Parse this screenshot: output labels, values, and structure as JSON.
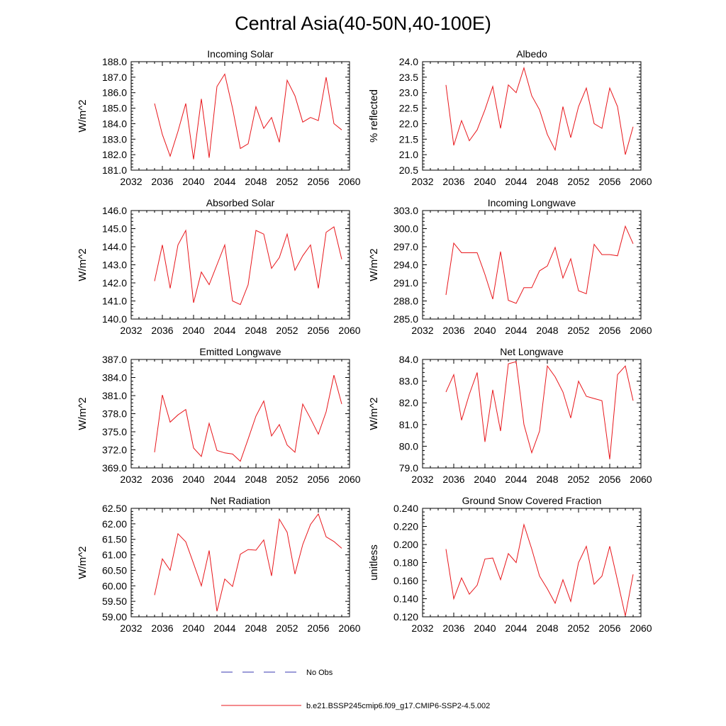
{
  "figure": {
    "title": "Central Asia(40-50N,40-100E)",
    "legend": {
      "obs_label": "No Obs",
      "obs_color": "#3a3ab0",
      "model_label": "b.e21.BSSP245cmip6.f09_g17.CMIP6-SSP2-4.5.002",
      "model_color": "#e8161b"
    }
  },
  "chart_data": [
    {
      "type": "line",
      "title": "Incoming Solar",
      "xlabel": "",
      "ylabel": "W/m^2",
      "xlim": [
        2032,
        2060
      ],
      "ylim": [
        181.0,
        188.0
      ],
      "x_ticks": [
        "2032",
        "2036",
        "2040",
        "2044",
        "2048",
        "2052",
        "2056",
        "2060"
      ],
      "y_ticks": [
        "181.0",
        "182.0",
        "183.0",
        "184.0",
        "185.0",
        "186.0",
        "187.0",
        "188.0"
      ],
      "x": [
        2035,
        2036,
        2037,
        2038,
        2039,
        2040,
        2041,
        2042,
        2043,
        2044,
        2045,
        2046,
        2047,
        2048,
        2049,
        2050,
        2051,
        2052,
        2053,
        2054,
        2055,
        2056,
        2057,
        2058,
        2059
      ],
      "values": [
        185.3,
        183.3,
        181.9,
        183.5,
        185.3,
        181.7,
        185.6,
        181.8,
        186.4,
        187.2,
        185.0,
        182.4,
        182.7,
        185.1,
        183.7,
        184.4,
        182.8,
        186.8,
        185.8,
        184.1,
        184.4,
        184.2,
        187.0,
        184.0,
        183.6
      ]
    },
    {
      "type": "line",
      "title": "Albedo",
      "xlabel": "",
      "ylabel": "% reflected",
      "xlim": [
        2032,
        2060
      ],
      "ylim": [
        20.5,
        24.0
      ],
      "x_ticks": [
        "2032",
        "2036",
        "2040",
        "2044",
        "2048",
        "2052",
        "2056",
        "2060"
      ],
      "y_ticks": [
        "20.5",
        "21.0",
        "21.5",
        "22.0",
        "22.5",
        "23.0",
        "23.5",
        "24.0"
      ],
      "x": [
        2035,
        2036,
        2037,
        2038,
        2039,
        2040,
        2041,
        2042,
        2043,
        2044,
        2045,
        2046,
        2047,
        2048,
        2049,
        2050,
        2051,
        2052,
        2053,
        2054,
        2055,
        2056,
        2057,
        2058,
        2059
      ],
      "values": [
        23.25,
        21.3,
        22.1,
        21.45,
        21.8,
        22.45,
        23.2,
        21.85,
        23.25,
        23.0,
        23.8,
        22.9,
        22.45,
        21.65,
        21.15,
        22.55,
        21.55,
        22.55,
        23.15,
        22.0,
        21.85,
        23.15,
        22.55,
        21.0,
        21.9
      ]
    },
    {
      "type": "line",
      "title": "Absorbed Solar",
      "xlabel": "",
      "ylabel": "W/m^2",
      "xlim": [
        2032,
        2060
      ],
      "ylim": [
        140.0,
        146.0
      ],
      "x_ticks": [
        "2032",
        "2036",
        "2040",
        "2044",
        "2048",
        "2052",
        "2056",
        "2060"
      ],
      "y_ticks": [
        "140.0",
        "141.0",
        "142.0",
        "143.0",
        "144.0",
        "145.0",
        "146.0"
      ],
      "x": [
        2035,
        2036,
        2037,
        2038,
        2039,
        2040,
        2041,
        2042,
        2043,
        2044,
        2045,
        2046,
        2047,
        2048,
        2049,
        2050,
        2051,
        2052,
        2053,
        2054,
        2055,
        2056,
        2057,
        2058,
        2059
      ],
      "values": [
        142.1,
        144.1,
        141.7,
        144.1,
        144.9,
        140.9,
        142.6,
        141.9,
        143.0,
        144.1,
        141.0,
        140.8,
        141.9,
        144.9,
        144.7,
        142.8,
        143.4,
        144.7,
        142.7,
        143.5,
        144.1,
        141.7,
        144.8,
        145.1,
        143.3
      ]
    },
    {
      "type": "line",
      "title": "Incoming Longwave",
      "xlabel": "",
      "ylabel": "W/m^2",
      "xlim": [
        2032,
        2060
      ],
      "ylim": [
        285.0,
        303.0
      ],
      "x_ticks": [
        "2032",
        "2036",
        "2040",
        "2044",
        "2048",
        "2052",
        "2056",
        "2060"
      ],
      "y_ticks": [
        "285.0",
        "288.0",
        "291.0",
        "294.0",
        "297.0",
        "300.0",
        "303.0"
      ],
      "x": [
        2035,
        2036,
        2037,
        2038,
        2039,
        2040,
        2041,
        2042,
        2043,
        2044,
        2045,
        2046,
        2047,
        2048,
        2049,
        2050,
        2051,
        2052,
        2053,
        2054,
        2055,
        2056,
        2057,
        2058,
        2059
      ],
      "values": [
        289.0,
        297.6,
        296.0,
        296.0,
        296.0,
        292.4,
        288.3,
        296.2,
        288.1,
        287.6,
        290.2,
        290.2,
        293.0,
        293.8,
        296.9,
        291.8,
        295.0,
        289.7,
        289.2,
        297.4,
        295.7,
        295.7,
        295.5,
        300.4,
        297.5
      ]
    },
    {
      "type": "line",
      "title": "Emitted Longwave",
      "xlabel": "",
      "ylabel": "W/m^2",
      "xlim": [
        2032,
        2060
      ],
      "ylim": [
        369.0,
        387.0
      ],
      "x_ticks": [
        "2032",
        "2036",
        "2040",
        "2044",
        "2048",
        "2052",
        "2056",
        "2060"
      ],
      "y_ticks": [
        "369.0",
        "372.0",
        "375.0",
        "378.0",
        "381.0",
        "384.0",
        "387.0"
      ],
      "x": [
        2035,
        2036,
        2037,
        2038,
        2039,
        2040,
        2041,
        2042,
        2043,
        2044,
        2045,
        2046,
        2047,
        2048,
        2049,
        2050,
        2051,
        2052,
        2053,
        2054,
        2055,
        2056,
        2057,
        2058,
        2059
      ],
      "values": [
        371.6,
        381.1,
        376.6,
        377.8,
        378.7,
        372.3,
        370.9,
        376.4,
        371.9,
        371.5,
        371.3,
        370.1,
        373.8,
        377.6,
        380.1,
        374.3,
        376.2,
        372.8,
        371.6,
        379.6,
        377.2,
        374.6,
        378.3,
        384.4,
        379.6
      ]
    },
    {
      "type": "line",
      "title": "Net Longwave",
      "xlabel": "",
      "ylabel": "W/m^2",
      "xlim": [
        2032,
        2060
      ],
      "ylim": [
        79.0,
        84.0
      ],
      "x_ticks": [
        "2032",
        "2036",
        "2040",
        "2044",
        "2048",
        "2052",
        "2056",
        "2060"
      ],
      "y_ticks": [
        "79.0",
        "80.0",
        "81.0",
        "82.0",
        "83.0",
        "84.0"
      ],
      "x": [
        2035,
        2036,
        2037,
        2038,
        2039,
        2040,
        2041,
        2042,
        2043,
        2044,
        2045,
        2046,
        2047,
        2048,
        2049,
        2050,
        2051,
        2052,
        2053,
        2054,
        2055,
        2056,
        2057,
        2058,
        2059
      ],
      "values": [
        82.5,
        83.3,
        81.2,
        82.4,
        83.4,
        80.2,
        82.6,
        80.7,
        83.8,
        83.9,
        81.0,
        79.7,
        80.7,
        83.7,
        83.2,
        82.5,
        81.3,
        83.0,
        82.3,
        82.2,
        82.1,
        79.4,
        83.3,
        83.7,
        82.1
      ]
    },
    {
      "type": "line",
      "title": "Net Radiation",
      "xlabel": "",
      "ylabel": "W/m^2",
      "xlim": [
        2032,
        2060
      ],
      "ylim": [
        59.0,
        62.5
      ],
      "x_ticks": [
        "2032",
        "2036",
        "2040",
        "2044",
        "2048",
        "2052",
        "2056",
        "2060"
      ],
      "y_ticks": [
        "59.00",
        "59.50",
        "60.00",
        "60.50",
        "61.00",
        "61.50",
        "62.00",
        "62.50"
      ],
      "x": [
        2035,
        2036,
        2037,
        2038,
        2039,
        2040,
        2041,
        2042,
        2043,
        2044,
        2045,
        2046,
        2047,
        2048,
        2049,
        2050,
        2051,
        2052,
        2053,
        2054,
        2055,
        2056,
        2057,
        2058,
        2059
      ],
      "values": [
        59.7,
        60.87,
        60.5,
        61.68,
        61.42,
        60.72,
        60.0,
        61.14,
        59.18,
        60.22,
        59.98,
        61.02,
        61.17,
        61.15,
        61.48,
        60.32,
        62.15,
        61.73,
        60.38,
        61.33,
        61.98,
        62.32,
        61.58,
        61.43,
        61.21
      ]
    },
    {
      "type": "line",
      "title": "Ground Snow Covered Fraction",
      "xlabel": "",
      "ylabel": "unitless",
      "xlim": [
        2032,
        2060
      ],
      "ylim": [
        0.12,
        0.24
      ],
      "x_ticks": [
        "2032",
        "2036",
        "2040",
        "2044",
        "2048",
        "2052",
        "2056",
        "2060"
      ],
      "y_ticks": [
        "0.120",
        "0.140",
        "0.160",
        "0.180",
        "0.200",
        "0.220",
        "0.240"
      ],
      "x": [
        2035,
        2036,
        2037,
        2038,
        2039,
        2040,
        2041,
        2042,
        2043,
        2044,
        2045,
        2046,
        2047,
        2048,
        2049,
        2050,
        2051,
        2052,
        2053,
        2054,
        2055,
        2056,
        2057,
        2058,
        2059
      ],
      "values": [
        0.195,
        0.14,
        0.163,
        0.145,
        0.155,
        0.184,
        0.185,
        0.161,
        0.19,
        0.18,
        0.222,
        0.195,
        0.165,
        0.151,
        0.135,
        0.161,
        0.137,
        0.18,
        0.198,
        0.156,
        0.165,
        0.198,
        0.16,
        0.121,
        0.167
      ]
    }
  ]
}
